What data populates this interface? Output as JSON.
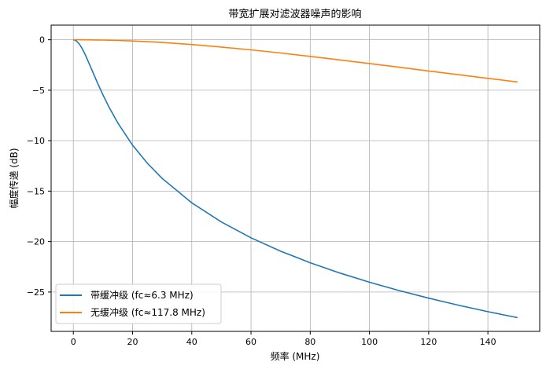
{
  "chart_data": {
    "type": "line",
    "title": "带宽扩展对滤波器噪声的影响",
    "xlabel": "频率 (MHz)",
    "ylabel": "幅度传递 (dB)",
    "xlim": [
      -7.5,
      157.5
    ],
    "ylim": [
      -28.9,
      1.45
    ],
    "xticks": [
      0,
      20,
      40,
      60,
      80,
      100,
      120,
      140
    ],
    "yticks": [
      0,
      -5,
      -10,
      -15,
      -20,
      -25
    ],
    "grid": true,
    "legend_position": "lower-left",
    "x": [
      0,
      1,
      2,
      3,
      4,
      5,
      6,
      8,
      10,
      12,
      15,
      20,
      25,
      30,
      40,
      50,
      60,
      70,
      80,
      90,
      100,
      110,
      120,
      130,
      140,
      150
    ],
    "series": [
      {
        "name": "带缓冲级 (fc≈6.3 MHz)",
        "color": "#1f77b4",
        "values": [
          0,
          -0.108,
          -0.417,
          -0.888,
          -1.471,
          -2.122,
          -2.805,
          -4.17,
          -5.465,
          -6.654,
          -8.24,
          -10.445,
          -12.239,
          -13.744,
          -16.16,
          -18.061,
          -19.624,
          -20.951,
          -22.101,
          -23.119,
          -24.031,
          -24.855,
          -25.61,
          -26.302,
          -26.946,
          -27.542
        ]
      },
      {
        "name": "无缓冲级 (fc≈117.8 MHz)",
        "color": "#ff7f0e",
        "values": [
          0,
          0,
          -0.001,
          -0.003,
          -0.005,
          -0.008,
          -0.011,
          -0.02,
          -0.031,
          -0.045,
          -0.07,
          -0.123,
          -0.193,
          -0.273,
          -0.474,
          -0.719,
          -1.002,
          -1.314,
          -1.648,
          -1.995,
          -2.357,
          -2.722,
          -3.091,
          -3.459,
          -3.824,
          -4.185
        ]
      }
    ]
  }
}
